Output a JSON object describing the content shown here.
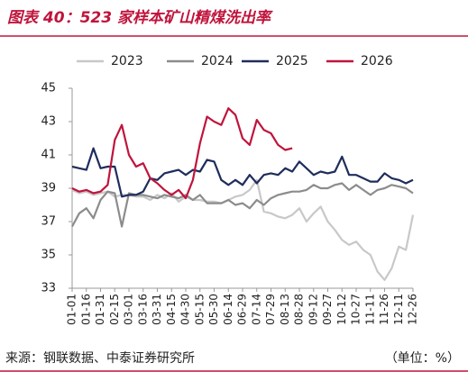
{
  "chart_data": {
    "type": "line",
    "title": "图表 40：523 家样本矿山精煤洗出率",
    "source": "来源：钢联数据、中泰证券研究所",
    "unit": "（单位：%）",
    "categories": [
      "01-01",
      null,
      "01-16",
      null,
      "01-31",
      null,
      "02-15",
      null,
      "03-01",
      null,
      "03-16",
      null,
      "03-31",
      null,
      "04-15",
      null,
      "04-30",
      null,
      "05-15",
      null,
      "05-30",
      null,
      "06-14",
      null,
      "06-29",
      null,
      "07-14",
      null,
      "07-29",
      null,
      "08-13",
      null,
      "08-28",
      null,
      "09-12",
      null,
      "09-27",
      null,
      "10-12",
      null,
      "10-27",
      null,
      "11-11",
      null,
      "11-26",
      null,
      "12-11",
      null,
      "12-26"
    ],
    "series": [
      {
        "name": "2023",
        "color": "#c8c8c8",
        "values": [
          38.9,
          38.7,
          38.8,
          38.6,
          38.7,
          38.8,
          38.5,
          38.6,
          38.6,
          38.5,
          38.5,
          38.3,
          38.6,
          38.4,
          38.7,
          38.2,
          38.5,
          38.3,
          38.3,
          38.2,
          38.2,
          38.1,
          38.3,
          38.5,
          38.6,
          38.9,
          39.5,
          37.6,
          37.5,
          37.3,
          37.2,
          37.4,
          37.8,
          37.0,
          37.5,
          37.9,
          37.0,
          36.5,
          35.9,
          35.6,
          35.8,
          35.3,
          35.0,
          34.0,
          33.5,
          34.2,
          35.5,
          35.3,
          37.4
        ]
      },
      {
        "name": "2024",
        "color": "#8c8c8c",
        "values": [
          36.7,
          37.5,
          37.8,
          37.2,
          38.3,
          38.8,
          38.7,
          36.7,
          38.7,
          38.6,
          38.6,
          38.5,
          38.4,
          38.6,
          38.5,
          38.4,
          38.6,
          38.3,
          38.6,
          38.1,
          38.1,
          38.1,
          38.3,
          38.0,
          38.1,
          37.8,
          38.3,
          38.0,
          38.4,
          38.6,
          38.7,
          38.8,
          38.8,
          38.9,
          39.2,
          39.0,
          39.0,
          39.2,
          39.3,
          38.9,
          39.2,
          38.9,
          38.6,
          38.9,
          39.0,
          39.2,
          39.1,
          39.0,
          38.7
        ]
      },
      {
        "name": "2025",
        "color": "#1f2d5c",
        "values": [
          40.3,
          40.2,
          40.1,
          41.4,
          40.2,
          40.3,
          40.3,
          38.5,
          38.6,
          38.6,
          38.8,
          39.6,
          39.5,
          39.9,
          40.0,
          40.1,
          39.8,
          40.1,
          40.0,
          40.7,
          40.6,
          39.5,
          39.2,
          39.5,
          39.2,
          39.8,
          39.3,
          39.8,
          39.9,
          39.8,
          40.2,
          40.0,
          40.6,
          40.2,
          39.8,
          40.0,
          39.9,
          40.0,
          40.9,
          39.8,
          39.8,
          39.6,
          39.4,
          39.4,
          39.9,
          39.6,
          39.5,
          39.3,
          39.5
        ]
      },
      {
        "name": "2026",
        "color": "#c0143c",
        "values": [
          39.0,
          38.8,
          38.9,
          38.7,
          38.8,
          39.2,
          41.9,
          42.8,
          41.0,
          40.3,
          40.5,
          39.6,
          39.3,
          38.9,
          38.6,
          38.9,
          38.4,
          39.5,
          41.7,
          43.3,
          43.0,
          42.8,
          43.8,
          43.4,
          42.0,
          41.6,
          43.1,
          42.5,
          42.3,
          41.6,
          41.3,
          41.4,
          null,
          null,
          null,
          null,
          null,
          null,
          null,
          null,
          null,
          null,
          null,
          null,
          null,
          null,
          null,
          null,
          null
        ]
      }
    ],
    "ylim": [
      33,
      45
    ],
    "yticks": [
      33,
      35,
      37,
      39,
      41,
      43,
      45
    ],
    "grid": false,
    "legend": "top"
  }
}
